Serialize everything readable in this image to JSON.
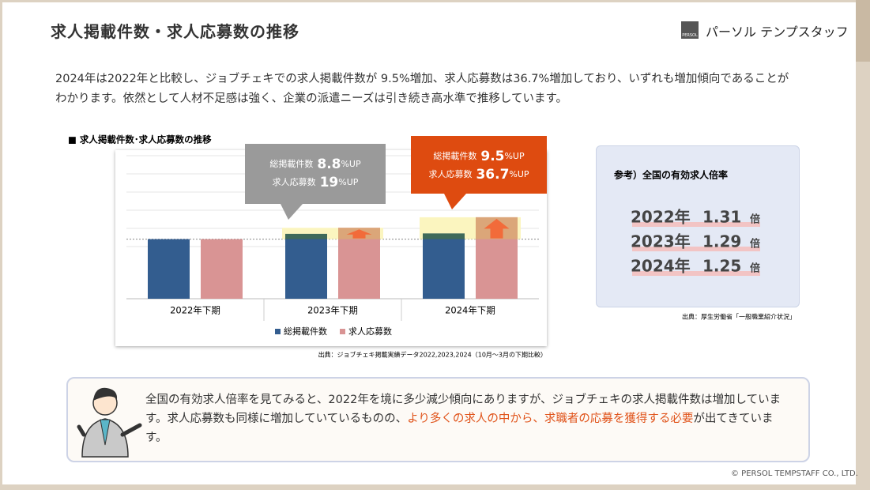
{
  "header": {
    "title": "求人掲載件数・求人応募数の推移",
    "brand": "パーソル テンプスタッフ",
    "brand_mark": "PERSOL"
  },
  "intro": "2024年は2022年と比較し、ジョブチェキでの求人掲載件数が 9.5%増加、求人応募数は36.7%増加しており、いずれも増加傾向であることがわかります。依然として人材不足感は強く、企業の派遣ニーズは引き続き高水準で推移しています。",
  "chart_data": {
    "type": "bar",
    "title": "■ 求人掲載件数･求人応募数の推移",
    "categories": [
      "2022年下期",
      "2023年下期",
      "2024年下期"
    ],
    "series": [
      {
        "name": "総掲載件数",
        "color": "#335d8f",
        "values": [
          100,
          108.8,
          109.5
        ]
      },
      {
        "name": "求人応募数",
        "color": "#d99494",
        "values": [
          100,
          119,
          136.7
        ]
      }
    ],
    "ylim": [
      0,
      240
    ],
    "annotations": [
      {
        "category": "2023年下期",
        "color": "#9a9a9a",
        "lines": [
          {
            "label": "総掲載件数",
            "value": 8.8,
            "unit": "%UP"
          },
          {
            "label": "求人応募数",
            "value": 19,
            "unit": "%UP"
          }
        ]
      },
      {
        "category": "2024年下期",
        "color": "#de4b10",
        "lines": [
          {
            "label": "総掲載件数",
            "value": 9.5,
            "unit": "%UP"
          },
          {
            "label": "求人応募数",
            "value": 36.7,
            "unit": "%UP"
          }
        ]
      }
    ],
    "source": "出典：ジョブチェキ掲載実績データ2022,2023,2024（10月～3月の下期比較）"
  },
  "reference": {
    "title": "参考）全国の有効求人倍率",
    "rows": [
      {
        "year": "2022年",
        "value": 1.31,
        "unit": "倍"
      },
      {
        "year": "2023年",
        "value": 1.29,
        "unit": "倍"
      },
      {
        "year": "2024年",
        "value": 1.25,
        "unit": "倍"
      }
    ],
    "source": "出典：厚生労働省「一般職業紹介状況」"
  },
  "summary": {
    "text_1": "全国の有効求人倍率を見てみると、2022年を境に多少減少傾向にありますが、ジョブチェキの求人掲載件数は増加しています。求人応募数も同様に増加していているものの、",
    "highlight": "より多くの求人の中から、求職者の応募を獲得する必要",
    "text_2": "が出てきています。"
  },
  "footer": {
    "copyright": "© PERSOL TEMPSTAFF CO., LTD."
  }
}
